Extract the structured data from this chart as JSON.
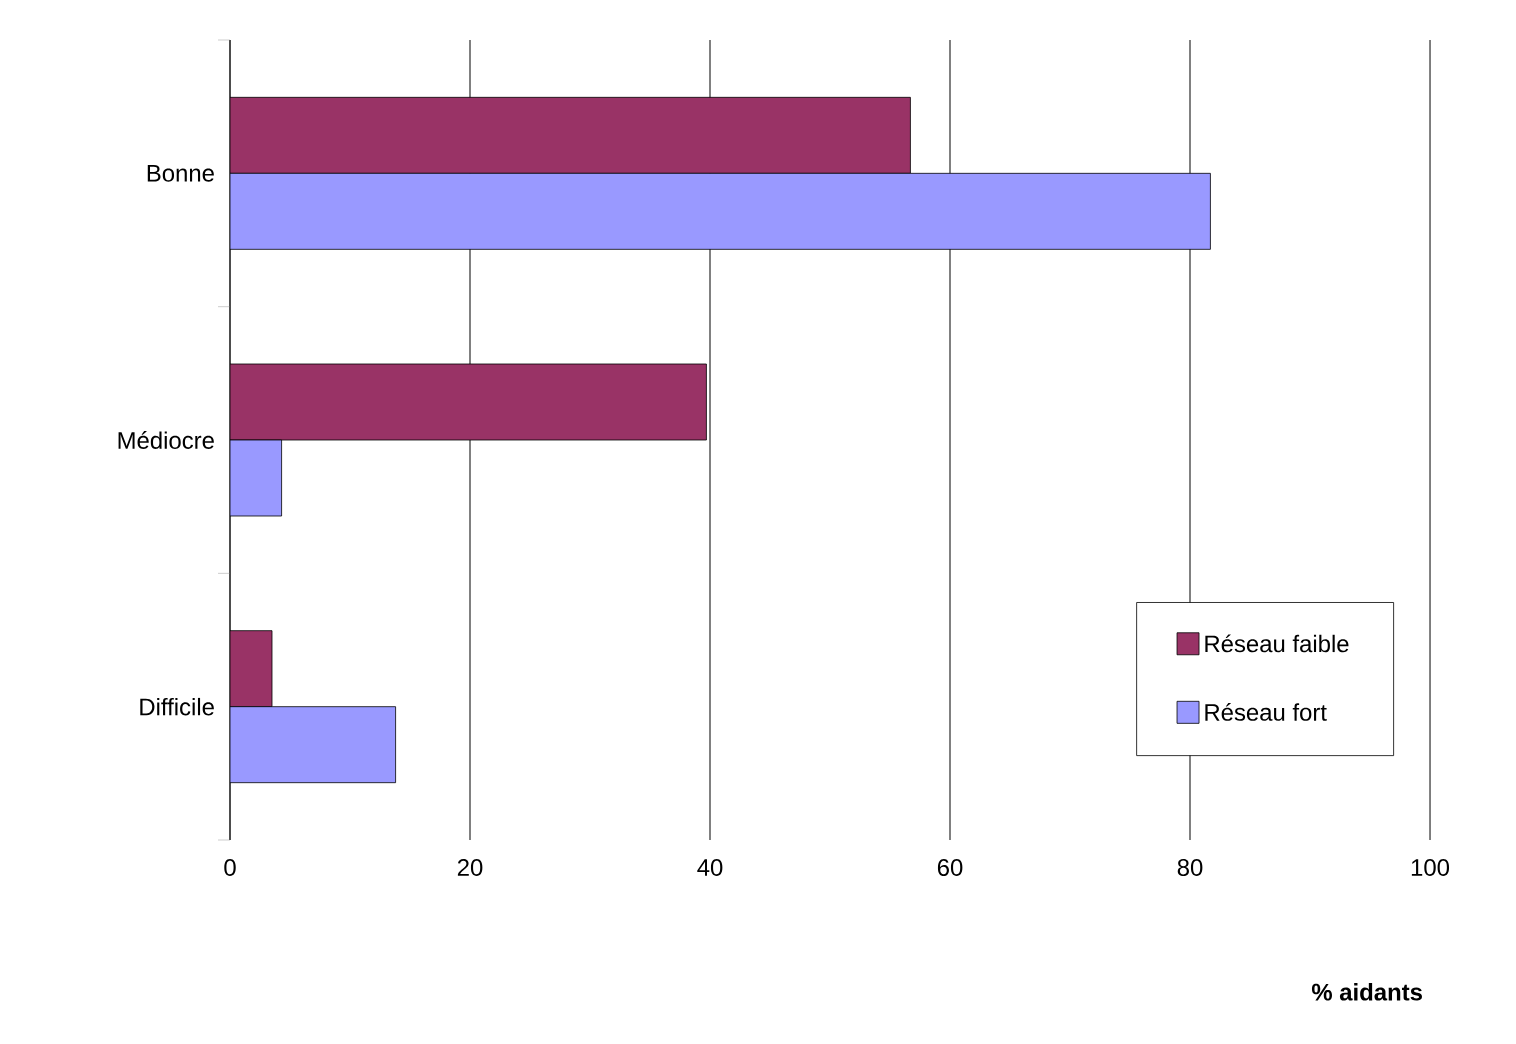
{
  "chart_data": {
    "type": "bar",
    "orientation": "horizontal",
    "categories": [
      "Bonne",
      "Médiocre",
      "Difficile"
    ],
    "series": [
      {
        "name": "Réseau faible",
        "color": "#993366",
        "values": [
          56.7,
          39.7,
          3.5
        ]
      },
      {
        "name": "Réseau fort",
        "color": "#9999ff",
        "values": [
          81.7,
          4.3,
          13.8
        ]
      }
    ],
    "xlim": [
      0,
      100
    ],
    "xticks": [
      0,
      20,
      40,
      60,
      80,
      100
    ],
    "xlabel": "% aidants",
    "grid": "x",
    "legend": "bottom right"
  }
}
